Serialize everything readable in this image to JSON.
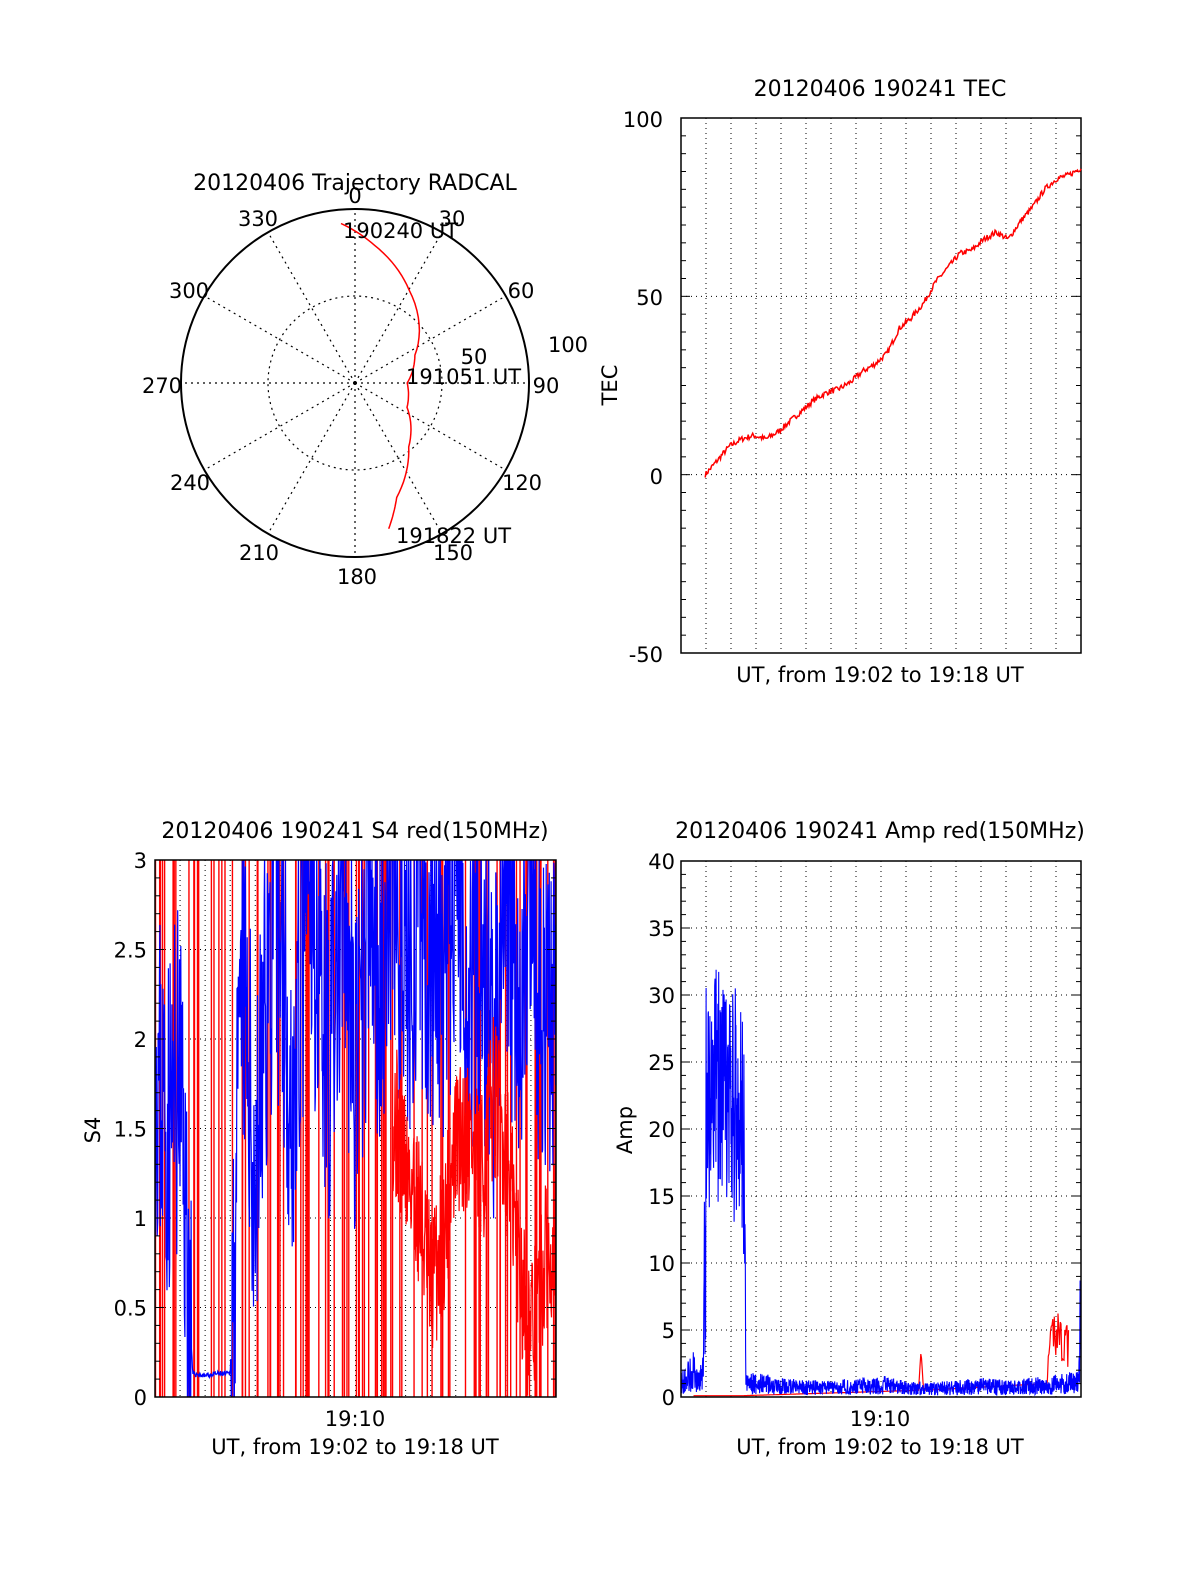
{
  "colors": {
    "red": "#ff0000",
    "blue": "#0000ff",
    "axis": "#000000",
    "grid": "#000000"
  },
  "charts": {
    "polar": {
      "title": "20120406 Trajectory RADCAL",
      "azimuth_labels": [
        "0",
        "30",
        "60",
        "90",
        "120",
        "150",
        "180",
        "210",
        "240",
        "270",
        "300",
        "330"
      ],
      "radius_labels": [
        "50",
        "100"
      ],
      "start_label": "190240 UT",
      "mid_label": "191051 UT",
      "end_label": "191822 UT"
    },
    "tec": {
      "title": "20120406 190241 TEC",
      "xlabel": "UT, from 19:02 to 19:18 UT",
      "ylabel": "TEC",
      "yticks": [
        "100",
        "50",
        "0",
        "-50"
      ]
    },
    "s4": {
      "title": "20120406 190241 S4 red(150MHz)",
      "xlabel": "UT, from 19:02 to 19:18 UT",
      "ylabel": "S4",
      "xtick": "19:10",
      "yticks": [
        "3",
        "2.5",
        "2",
        "1.5",
        "1",
        "0.5",
        "0"
      ]
    },
    "amp": {
      "title": "20120406 190241 Amp red(150MHz)",
      "xlabel": "UT, from 19:02 to 19:18 UT",
      "ylabel": "Amp",
      "xtick": "19:10",
      "yticks": [
        "40",
        "35",
        "30",
        "25",
        "20",
        "15",
        "10",
        "5",
        "0"
      ]
    }
  },
  "chart_data": [
    {
      "type": "scatter",
      "title": "20120406 Trajectory RADCAL",
      "projection": "polar",
      "r_range": [
        0,
        100
      ],
      "theta_ticks_deg": [
        0,
        30,
        60,
        90,
        120,
        150,
        180,
        210,
        240,
        270,
        300,
        330
      ],
      "grid": true,
      "series": [
        {
          "color": "red",
          "points_az_deg": [
            355,
            8,
            30,
            65,
            90,
            115,
            140,
            160,
            167
          ],
          "points_r": [
            92,
            80,
            62,
            38,
            30,
            33,
            48,
            70,
            86
          ]
        }
      ],
      "annotations": [
        "190240 UT",
        "191051 UT",
        "191822 UT"
      ]
    },
    {
      "type": "line",
      "title": "20120406 190241 TEC",
      "xlabel": "UT, from 19:02 to 19:18 UT",
      "ylabel": "TEC",
      "ylim": [
        -50,
        100
      ],
      "xlim": [
        "19:02",
        "19:18"
      ],
      "grid": true,
      "series": [
        {
          "color": "red",
          "x_min": [
            1.0,
            1.5,
            2.0,
            2.5,
            3.0,
            3.5,
            4.0,
            4.5,
            5.0,
            5.5,
            6.0,
            6.5,
            7.0,
            7.5,
            8.0,
            8.5,
            9.0,
            9.5,
            10.0,
            10.5,
            11.0,
            11.5,
            12.0,
            12.5,
            13.0,
            13.5,
            14.0,
            14.5,
            15.0,
            15.5,
            16.0,
            16.5
          ],
          "y": [
            0,
            4,
            8,
            10,
            11,
            10,
            12,
            15,
            18,
            21,
            23,
            24,
            26,
            29,
            31,
            34,
            41,
            44,
            48,
            54,
            58,
            62,
            63,
            66,
            68,
            66,
            71,
            75,
            80,
            83,
            84,
            86
          ]
        }
      ]
    },
    {
      "type": "line",
      "title": "20120406 190241 S4 red(150MHz)",
      "xlabel": "UT, from 19:02 to 19:18 UT",
      "ylabel": "S4",
      "ylim": [
        0,
        3
      ],
      "xlim": [
        "19:02",
        "19:18"
      ],
      "xticks": [
        "19:10"
      ],
      "grid": true,
      "series": [
        {
          "color": "blue",
          "x_min": [
            0.0,
            0.5,
            1.0,
            1.5,
            2.0,
            2.5,
            3.0,
            3.5,
            4.0,
            4.5,
            5.0,
            5.5,
            6.0,
            6.5,
            7.0,
            7.5,
            8.0,
            8.5,
            9.0,
            9.5,
            10.0,
            10.5,
            11.0,
            11.5,
            12.0,
            12.5,
            13.0,
            13.5,
            14.0,
            14.5,
            15.0,
            15.5,
            16.0
          ],
          "y": [
            1.9,
            1.5,
            1.8,
            0.13,
            0.12,
            0.13,
            0.13,
            2.3,
            1.2,
            2.4,
            2.6,
            1.6,
            2.7,
            2.5,
            1.9,
            2.8,
            1.7,
            2.6,
            2.4,
            2.9,
            2.2,
            2.7,
            2.5,
            2.1,
            2.9,
            2.3,
            2.6,
            1.9,
            2.8,
            2.2,
            2.6,
            2.0,
            2.3
          ]
        },
        {
          "color": "red",
          "x_min": [
            9.5,
            10.0,
            10.5,
            11.0,
            11.5,
            12.0,
            12.5,
            13.0,
            13.5,
            14.0,
            14.5,
            15.0,
            15.5,
            16.0
          ],
          "y": [
            1.6,
            1.3,
            1.1,
            0.6,
            0.9,
            1.4,
            1.5,
            1.2,
            1.7,
            1.4,
            0.8,
            0.3,
            0.7,
            1.0
          ]
        }
      ]
    },
    {
      "type": "line",
      "title": "20120406 190241 Amp red(150MHz)",
      "xlabel": "UT, from 19:02 to 19:18 UT",
      "ylabel": "Amp",
      "ylim": [
        0,
        40
      ],
      "xlim": [
        "19:02",
        "19:18"
      ],
      "xticks": [
        "19:10"
      ],
      "grid": true,
      "series": [
        {
          "color": "blue",
          "x_min": [
            0.0,
            0.5,
            0.7,
            0.9,
            1.0,
            1.3,
            1.6,
            1.9,
            2.2,
            2.5,
            2.6,
            2.8,
            3.2,
            4.0,
            5.0,
            6.0,
            7.0,
            8.0,
            9.0,
            10.0,
            11.0,
            12.0,
            13.0,
            14.0,
            15.0,
            15.9,
            16.0
          ],
          "y": [
            1,
            2,
            1,
            2,
            22,
            24,
            23,
            21,
            22,
            20,
            1,
            1,
            1,
            0.8,
            0.7,
            0.7,
            0.8,
            0.9,
            0.7,
            0.6,
            0.7,
            0.8,
            0.7,
            0.8,
            0.9,
            1.2,
            9.5
          ]
        },
        {
          "color": "red",
          "x_min": [
            0.5,
            1.0,
            2.0,
            2.5,
            9.5,
            9.6,
            9.7,
            14.6,
            14.8,
            15.0,
            15.2,
            15.5
          ],
          "y": [
            0.1,
            0.1,
            0.1,
            0.1,
            0.5,
            3.5,
            0.5,
            1.0,
            4.5,
            7.0,
            5.5,
            5.0
          ]
        }
      ]
    }
  ]
}
